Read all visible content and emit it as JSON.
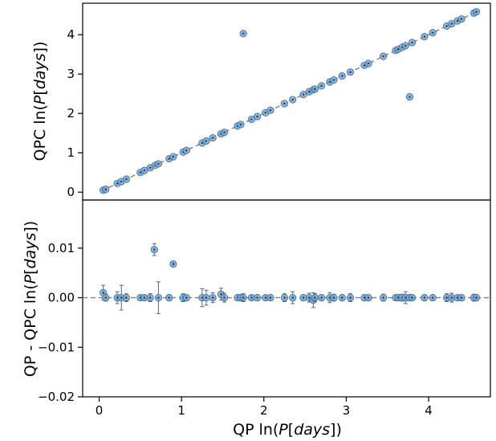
{
  "chart_data": [
    {
      "type": "scatter",
      "panel": "top",
      "xlabel_parts": [
        "",
        "",
        "",
        ""
      ],
      "ylabel_parts": [
        "QPC ln(",
        "P",
        "[",
        "days",
        "])"
      ],
      "xlim": [
        -0.2,
        4.75
      ],
      "ylim": [
        -0.2,
        4.8
      ],
      "yticks": [
        0,
        1,
        2,
        3,
        4
      ],
      "yticklabels": [
        "0",
        "1",
        "2",
        "3",
        "4"
      ],
      "grid": false,
      "reference_line": "y = x (dashed, gray)",
      "points": [
        {
          "x": 0.05,
          "y": 0.05
        },
        {
          "x": 0.08,
          "y": 0.07
        },
        {
          "x": 0.22,
          "y": 0.22
        },
        {
          "x": 0.27,
          "y": 0.27
        },
        {
          "x": 0.33,
          "y": 0.33
        },
        {
          "x": 0.5,
          "y": 0.5
        },
        {
          "x": 0.55,
          "y": 0.55
        },
        {
          "x": 0.62,
          "y": 0.62
        },
        {
          "x": 0.68,
          "y": 0.68
        },
        {
          "x": 0.72,
          "y": 0.72
        },
        {
          "x": 0.85,
          "y": 0.85
        },
        {
          "x": 0.9,
          "y": 0.9
        },
        {
          "x": 1.02,
          "y": 1.02
        },
        {
          "x": 1.06,
          "y": 1.06
        },
        {
          "x": 1.25,
          "y": 1.25
        },
        {
          "x": 1.3,
          "y": 1.3
        },
        {
          "x": 1.38,
          "y": 1.38
        },
        {
          "x": 1.48,
          "y": 1.48
        },
        {
          "x": 1.52,
          "y": 1.52
        },
        {
          "x": 1.68,
          "y": 1.68
        },
        {
          "x": 1.72,
          "y": 1.72
        },
        {
          "x": 1.75,
          "y": 4.03
        },
        {
          "x": 1.85,
          "y": 1.85
        },
        {
          "x": 1.92,
          "y": 1.92
        },
        {
          "x": 2.02,
          "y": 2.02
        },
        {
          "x": 2.08,
          "y": 2.08
        },
        {
          "x": 2.25,
          "y": 2.25
        },
        {
          "x": 2.35,
          "y": 2.35
        },
        {
          "x": 2.48,
          "y": 2.48
        },
        {
          "x": 2.55,
          "y": 2.55
        },
        {
          "x": 2.6,
          "y": 2.6
        },
        {
          "x": 2.62,
          "y": 2.62
        },
        {
          "x": 2.7,
          "y": 2.7
        },
        {
          "x": 2.8,
          "y": 2.8
        },
        {
          "x": 2.85,
          "y": 2.85
        },
        {
          "x": 2.95,
          "y": 2.95
        },
        {
          "x": 3.05,
          "y": 3.05
        },
        {
          "x": 3.22,
          "y": 3.22
        },
        {
          "x": 3.27,
          "y": 3.27
        },
        {
          "x": 3.45,
          "y": 3.45
        },
        {
          "x": 3.6,
          "y": 3.6
        },
        {
          "x": 3.63,
          "y": 3.63
        },
        {
          "x": 3.68,
          "y": 3.68
        },
        {
          "x": 3.72,
          "y": 3.72
        },
        {
          "x": 3.77,
          "y": 2.42
        },
        {
          "x": 3.8,
          "y": 3.8
        },
        {
          "x": 3.95,
          "y": 3.95
        },
        {
          "x": 4.05,
          "y": 4.05
        },
        {
          "x": 4.22,
          "y": 4.22
        },
        {
          "x": 4.28,
          "y": 4.28
        },
        {
          "x": 4.35,
          "y": 4.35
        },
        {
          "x": 4.4,
          "y": 4.4
        },
        {
          "x": 4.55,
          "y": 4.55
        },
        {
          "x": 4.58,
          "y": 4.58
        }
      ]
    },
    {
      "type": "scatter",
      "panel": "bottom",
      "xlabel_parts": [
        "QP ln(",
        "P",
        "[",
        "days",
        "])"
      ],
      "ylabel_parts": [
        "QP - QPC  ln(",
        "P",
        "[",
        "days",
        "])"
      ],
      "xlim": [
        -0.2,
        4.75
      ],
      "ylim": [
        -0.02,
        0.0197
      ],
      "xticks": [
        0,
        1,
        2,
        3,
        4
      ],
      "xticklabels": [
        "0",
        "1",
        "2",
        "3",
        "4"
      ],
      "yticks": [
        -0.02,
        -0.01,
        0.0,
        0.01
      ],
      "yticklabels": [
        "−0.02",
        "−0.01",
        "0.00",
        "0.01"
      ],
      "grid": false,
      "reference_line": "y = 0 (dashed, gray)",
      "points": [
        {
          "x": 0.05,
          "y": 0.001,
          "err": 0.0015
        },
        {
          "x": 0.08,
          "y": 0.0,
          "err": 0.0007
        },
        {
          "x": 0.22,
          "y": 0.0,
          "err": 0.0012
        },
        {
          "x": 0.27,
          "y": 0.0,
          "err": 0.0025
        },
        {
          "x": 0.33,
          "y": 0.0,
          "err": 0.0008
        },
        {
          "x": 0.5,
          "y": 0.0,
          "err": 0.0005
        },
        {
          "x": 0.55,
          "y": 0.0,
          "err": 0.0004
        },
        {
          "x": 0.62,
          "y": 0.0,
          "err": 0.0008
        },
        {
          "x": 0.67,
          "y": 0.0097,
          "err": 0.0012
        },
        {
          "x": 0.72,
          "y": 0.0,
          "err": 0.0032
        },
        {
          "x": 0.85,
          "y": 0.0,
          "err": 0.0006
        },
        {
          "x": 0.9,
          "y": 0.0068,
          "err": 0.0003
        },
        {
          "x": 1.02,
          "y": 0.0,
          "err": 0.0008
        },
        {
          "x": 1.06,
          "y": 0.0,
          "err": 0.0005
        },
        {
          "x": 1.25,
          "y": 0.0,
          "err": 0.0018
        },
        {
          "x": 1.3,
          "y": 0.0,
          "err": 0.0015
        },
        {
          "x": 1.38,
          "y": 0.0,
          "err": 0.001
        },
        {
          "x": 1.48,
          "y": 0.0007,
          "err": 0.0012
        },
        {
          "x": 1.52,
          "y": 0.0,
          "err": 0.0009
        },
        {
          "x": 1.68,
          "y": 0.0,
          "err": 0.0005
        },
        {
          "x": 1.72,
          "y": 0.0,
          "err": 0.0006
        },
        {
          "x": 1.75,
          "y": 0.0,
          "err": 0.0008
        },
        {
          "x": 1.85,
          "y": 0.0,
          "err": 0.0005
        },
        {
          "x": 1.92,
          "y": 0.0,
          "err": 0.0006
        },
        {
          "x": 2.02,
          "y": 0.0,
          "err": 0.0005
        },
        {
          "x": 2.08,
          "y": 0.0,
          "err": 0.0006
        },
        {
          "x": 2.25,
          "y": 0.0,
          "err": 0.0008
        },
        {
          "x": 2.35,
          "y": 0.0,
          "err": 0.0012
        },
        {
          "x": 2.48,
          "y": 0.0,
          "err": 0.0006
        },
        {
          "x": 2.55,
          "y": 0.0,
          "err": 0.0009
        },
        {
          "x": 2.6,
          "y": -0.0005,
          "err": 0.0015
        },
        {
          "x": 2.62,
          "y": 0.0,
          "err": 0.0008
        },
        {
          "x": 2.7,
          "y": 0.0,
          "err": 0.0006
        },
        {
          "x": 2.8,
          "y": 0.0,
          "err": 0.001
        },
        {
          "x": 2.85,
          "y": 0.0,
          "err": 0.0007
        },
        {
          "x": 2.95,
          "y": 0.0,
          "err": 0.0006
        },
        {
          "x": 3.05,
          "y": 0.0,
          "err": 0.0008
        },
        {
          "x": 3.22,
          "y": 0.0,
          "err": 0.0006
        },
        {
          "x": 3.27,
          "y": 0.0,
          "err": 0.0005
        },
        {
          "x": 3.45,
          "y": 0.0,
          "err": 0.0007
        },
        {
          "x": 3.6,
          "y": 0.0,
          "err": 0.0005
        },
        {
          "x": 3.63,
          "y": 0.0,
          "err": 0.0006
        },
        {
          "x": 3.68,
          "y": 0.0,
          "err": 0.0007
        },
        {
          "x": 3.72,
          "y": 0.0,
          "err": 0.0012
        },
        {
          "x": 3.77,
          "y": 0.0,
          "err": 0.0006
        },
        {
          "x": 3.8,
          "y": 0.0,
          "err": 0.0005
        },
        {
          "x": 3.95,
          "y": 0.0,
          "err": 0.0006
        },
        {
          "x": 4.05,
          "y": 0.0,
          "err": 0.0005
        },
        {
          "x": 4.22,
          "y": 0.0,
          "err": 0.0008
        },
        {
          "x": 4.28,
          "y": 0.0,
          "err": 0.0009
        },
        {
          "x": 4.35,
          "y": 0.0,
          "err": 0.0005
        },
        {
          "x": 4.4,
          "y": 0.0,
          "err": 0.0006
        },
        {
          "x": 4.55,
          "y": 0.0,
          "err": 0.0007
        },
        {
          "x": 4.58,
          "y": 0.0,
          "err": 0.0006
        }
      ]
    }
  ],
  "colors": {
    "marker_fill": "#7aa6cf",
    "marker_edge": "#3a6f9e",
    "marker_center": "#1f2d3a",
    "errorbar": "#666666",
    "reference_line": "#808080",
    "axes": "#000000"
  }
}
